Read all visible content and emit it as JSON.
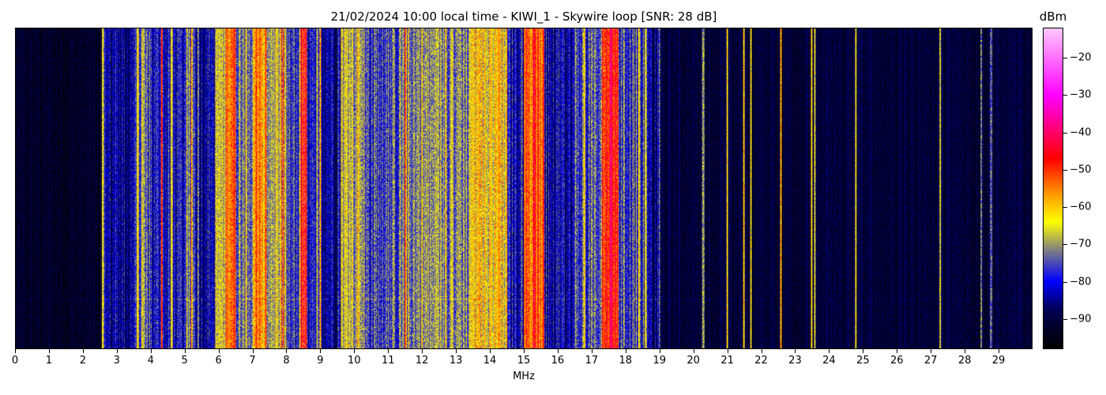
{
  "chart_data": {
    "type": "heatmap",
    "title": "21/02/2024 10:00 local time - KIWI_1 - Skywire loop [SNR: 28 dB]",
    "xlabel": "MHz",
    "ylabel": "",
    "xlim": [
      0,
      30
    ],
    "x_ticks": [
      "0",
      "1",
      "2",
      "3",
      "4",
      "5",
      "6",
      "7",
      "8",
      "9",
      "10",
      "11",
      "12",
      "13",
      "14",
      "15",
      "16",
      "17",
      "18",
      "19",
      "20",
      "21",
      "22",
      "23",
      "24",
      "25",
      "26",
      "27",
      "28",
      "29"
    ],
    "colorbar": {
      "label": "dBm",
      "range": [
        -98,
        -12
      ],
      "ticks": [
        "-20",
        "-30",
        "-40",
        "-50",
        "-60",
        "-70",
        "-80",
        "-90"
      ],
      "colormap": [
        [
          -98,
          "#000000"
        ],
        [
          -88,
          "#000050"
        ],
        [
          -80,
          "#0000ff"
        ],
        [
          -72,
          "#7a7a8a"
        ],
        [
          -64,
          "#ffff00"
        ],
        [
          -57,
          "#ffa000"
        ],
        [
          -47,
          "#ff0000"
        ],
        [
          -30,
          "#ff00ff"
        ],
        [
          -12,
          "#ffc8ff"
        ]
      ]
    },
    "band_levels_dBm": [
      [
        0,
        2.55,
        -93
      ],
      [
        2.55,
        2.62,
        -70
      ],
      [
        2.62,
        3.5,
        -84
      ],
      [
        3.5,
        4.0,
        -77
      ],
      [
        4.0,
        5.0,
        -81
      ],
      [
        5.0,
        5.3,
        -75
      ],
      [
        5.3,
        5.9,
        -82
      ],
      [
        5.9,
        6.2,
        -67
      ],
      [
        6.2,
        6.5,
        -52
      ],
      [
        6.5,
        7.0,
        -72
      ],
      [
        7.0,
        7.4,
        -60
      ],
      [
        7.4,
        8.0,
        -68
      ],
      [
        8.0,
        8.4,
        -78
      ],
      [
        8.4,
        8.6,
        -50
      ],
      [
        8.6,
        9.6,
        -82
      ],
      [
        9.6,
        10.3,
        -68
      ],
      [
        10.3,
        11.3,
        -76
      ],
      [
        11.3,
        12.5,
        -72
      ],
      [
        12.5,
        13.4,
        -71
      ],
      [
        13.4,
        14.5,
        -63
      ],
      [
        14.5,
        15.0,
        -80
      ],
      [
        15.0,
        15.6,
        -53
      ],
      [
        15.6,
        16.5,
        -84
      ],
      [
        16.5,
        17.3,
        -76
      ],
      [
        17.3,
        17.8,
        -48
      ],
      [
        17.8,
        18.6,
        -76
      ],
      [
        18.6,
        19.0,
        -86
      ],
      [
        19.0,
        30.0,
        -91
      ]
    ],
    "lines_dBm": [
      [
        3.6,
        -64
      ],
      [
        3.75,
        -66
      ],
      [
        4.3,
        -50
      ],
      [
        4.6,
        -65
      ],
      [
        5.2,
        -62
      ],
      [
        6.8,
        -62
      ],
      [
        7.1,
        -50
      ],
      [
        7.9,
        -52
      ],
      [
        8.9,
        -68
      ],
      [
        9.0,
        -62
      ],
      [
        10.1,
        -60
      ],
      [
        11.5,
        -55
      ],
      [
        12.0,
        -62
      ],
      [
        13.7,
        -58
      ],
      [
        14.2,
        -60
      ],
      [
        16.8,
        -62
      ],
      [
        17.6,
        -44
      ],
      [
        18.4,
        -62
      ],
      [
        18.6,
        -66
      ],
      [
        19.0,
        -74
      ],
      [
        20.3,
        -70
      ],
      [
        21.0,
        -62
      ],
      [
        21.5,
        -60
      ],
      [
        21.7,
        -64
      ],
      [
        22.6,
        -58
      ],
      [
        23.5,
        -62
      ],
      [
        23.6,
        -66
      ],
      [
        24.8,
        -64
      ],
      [
        27.3,
        -66
      ],
      [
        28.5,
        -72
      ],
      [
        28.8,
        -74
      ]
    ]
  }
}
